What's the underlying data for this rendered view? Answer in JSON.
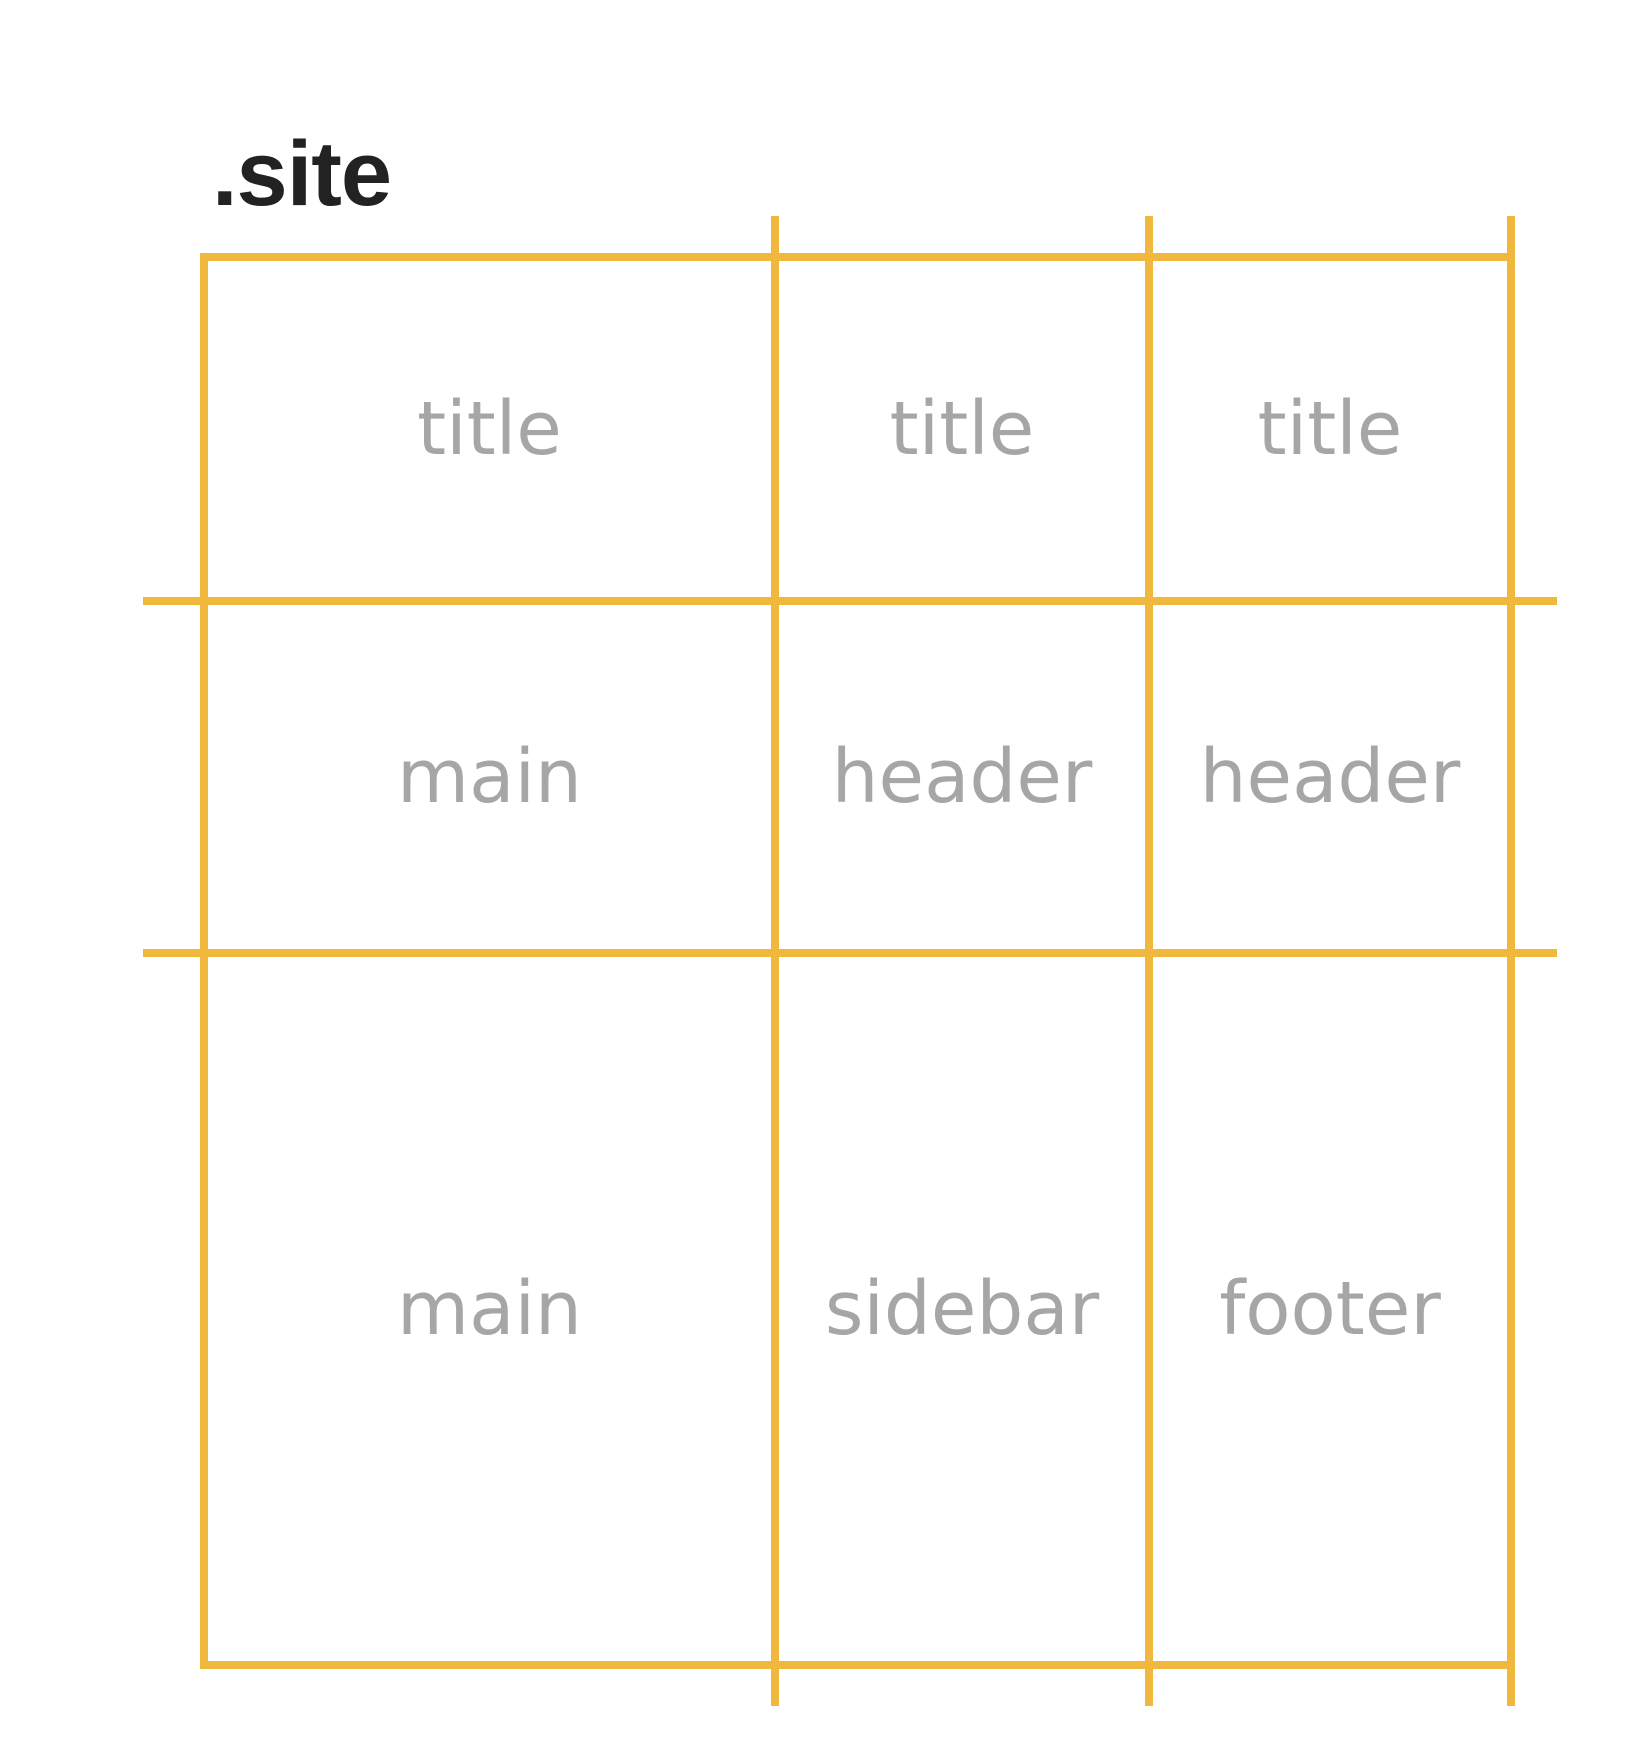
{
  "diagram": {
    "container_label": ".site",
    "line_color": "#f0b93e",
    "text_color": "#a6a6a6",
    "rows": [
      {
        "cells": [
          "title",
          "title",
          "title"
        ]
      },
      {
        "cells": [
          "main",
          "header",
          "header"
        ]
      },
      {
        "cells": [
          "main",
          "sidebar",
          "footer"
        ]
      }
    ]
  }
}
